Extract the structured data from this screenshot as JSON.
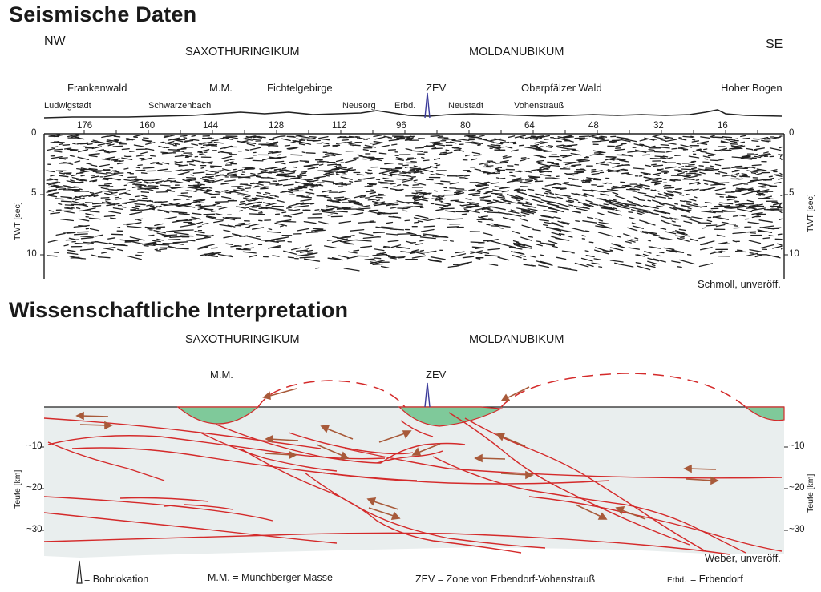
{
  "sections": {
    "seismic_title": "Seismische Daten",
    "interpretation_title": "Wissenschaftliche Interpretation"
  },
  "directions": {
    "left": "NW",
    "right": "SE"
  },
  "regions": [
    "SAXOTHURINGIKUM",
    "MOLDANUBIKUM"
  ],
  "areas": [
    "Frankenwald",
    "M.M.",
    "Fichtelgebirge",
    "ZEV",
    "Oberpfälzer Wald",
    "Hoher Bogen"
  ],
  "towns": [
    "Ludwigstadt",
    "Schwarzenbach",
    "Neusorg",
    "Erbd.",
    "Neustadt",
    "Vohenstrauß"
  ],
  "profile_ticks": [
    "176",
    "160",
    "144",
    "128",
    "112",
    "96",
    "80",
    "64",
    "48",
    "32",
    "16"
  ],
  "twt_axis": {
    "label": "TWT [sec]",
    "ticks": [
      "0",
      "5",
      "10"
    ]
  },
  "depth_axis": {
    "label": "Teufe [km]",
    "ticks": [
      "~10",
      "~20",
      "~30"
    ]
  },
  "interp_labels": {
    "mm": "M.M.",
    "zev": "ZEV",
    "question": "?"
  },
  "credits": {
    "seismic": "Schmoll, unveröff.",
    "interpretation": "Weber, unveröff."
  },
  "legend": {
    "borehole": "= Bohrlokation",
    "mm": "M.M. = Münchberger Masse",
    "zev": "ZEV = Zone von Erbendorf-Vohenstrauß",
    "erbd": "= Erbendorf",
    "erbd_abbr": "Erbd."
  },
  "colors": {
    "faults": "#d42a2a",
    "arrows": "#a85a3a",
    "mass": "#7fc99a",
    "background_section": "#e9eeee",
    "question": "#2e2e86",
    "borehole": "#3a3a9a"
  }
}
